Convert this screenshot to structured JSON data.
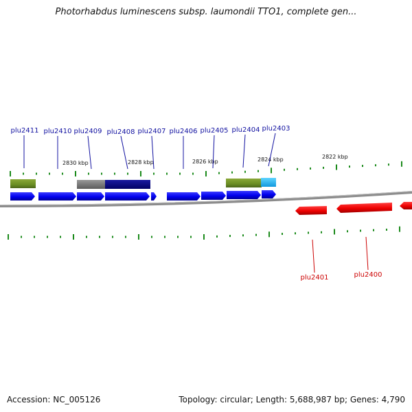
{
  "title": "Photorhabdus luminescens subsp. laumondii TTO1, complete gen...",
  "footer": {
    "accession": "Accession: NC_005126",
    "summary": "Topology: circular; Length: 5,688,987 bp; Genes: 4,790"
  },
  "scale_labels": [
    "2830 kbp",
    "2828 kbp",
    "2826 kbp",
    "2824 kbp",
    "2822 kbp"
  ],
  "genes_forward": [
    "plu2411",
    "plu2410",
    "plu2409",
    "plu2408",
    "plu2407",
    "plu2406",
    "plu2405",
    "plu2404",
    "plu2403"
  ],
  "genes_reverse": [
    "plu2401",
    "plu2400"
  ],
  "colors": {
    "forward_gene": "#0000ee",
    "reverse_gene": "#ee0000",
    "forward_label": "#1010a0",
    "reverse_label": "#cc0000",
    "ticks": "#1a8a1a",
    "backbone": "#888888",
    "domain_green": "#6b8e23",
    "domain_gray": "#777777",
    "domain_navy": "#0a0a88",
    "domain_cyan": "#22bbee"
  }
}
